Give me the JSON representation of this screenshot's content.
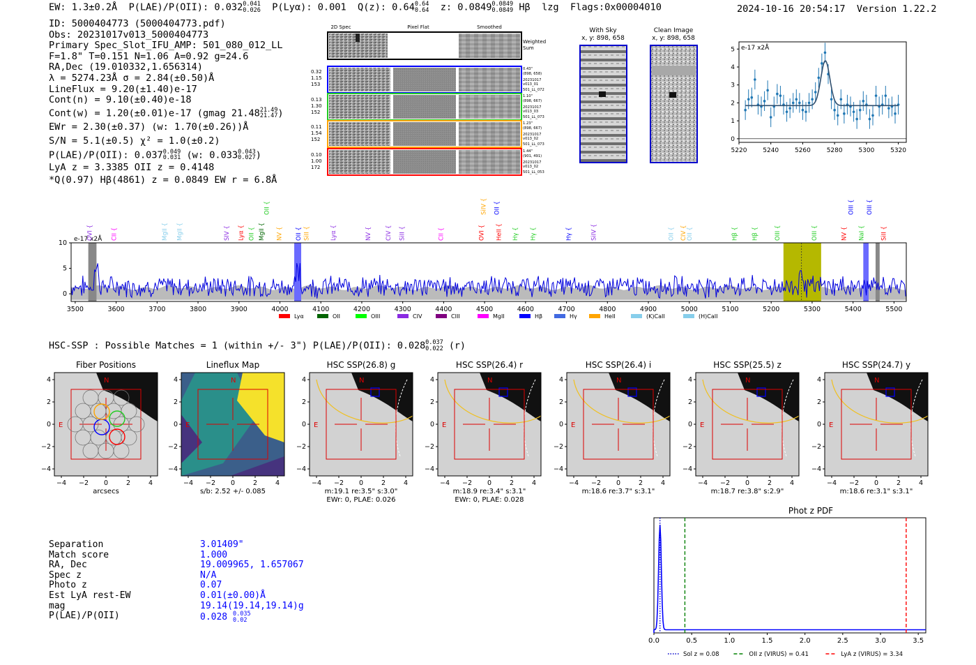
{
  "header": {
    "ew": "EW: 1.3±0.2Å",
    "plae": "P(LAE)/P(OII): 0.032",
    "plae_hi": "0.041",
    "plae_lo": "0.026",
    "plya": "P(Lyα): 0.001",
    "qz": "Q(z): 0.64",
    "qz_hi": "0.64",
    "qz_lo": "0.64",
    "z": "z: 0.0849",
    "z_hi": "0.0849",
    "z_lo": "0.0849",
    "line_tag": "Hβ",
    "flag_tag": "lzg",
    "flags": "Flags:0x00004010",
    "timestamp": "2024-10-16 20:54:17",
    "version": "Version 1.22.2"
  },
  "info": {
    "id": "ID: 5000404773 (5000404773.pdf)",
    "obs": "Obs: 20231017v013_5000404773",
    "primary": "Primary Spec_Slot_IFU_AMP: 501_080_012_LL",
    "fline": "F=1.8\"  T=0.151  N=1.06  A=0.92  g=24.6",
    "radec": "RA,Dec (19.010332,1.656314)",
    "lambda": "λ = 5274.23Å  σ = 2.84(±0.50)Å",
    "lineflux": "LineFlux = 9.20(±1.40)e-17",
    "contn": "Cont(n) = 9.10(±0.40)e-18",
    "contw": "Cont(w) = 1.20(±0.01)e-17 (gmag 21.48",
    "contw_hi": "21.49",
    "contw_lo": "21.47",
    "ewr": "EWr = 2.30(±0.37) (w: 1.70(±0.26))Å",
    "sn": "S/N = 5.1(±0.5)  χ² = 1.0(±0.2)",
    "plae": "P(LAE)/P(OII): 0.037",
    "plae_hi": "0.049",
    "plae_lo": "0.031",
    "plae_w": "(w: 0.033",
    "plae_w_hi": "0.043",
    "plae_w_lo": "0.027",
    "lya": "LyA z = 3.3385  OII z = 0.4148",
    "q": "*Q(0.97) Hβ(4861) z = 0.0849  EW r = 6.8Å"
  },
  "cutouts": {
    "col_labels": [
      "2D Spec",
      "Pixel Flat",
      "Smoothed"
    ],
    "weighted_label": [
      "Weighted",
      "Sum"
    ],
    "rows": [
      {
        "left": [
          "0.32",
          "1.15",
          "153"
        ],
        "right": [
          "0.43\"",
          "(898, 658)",
          "20231017",
          "v013_01",
          "501_LL_072"
        ],
        "color": "#0000ff"
      },
      {
        "left": [
          "0.13",
          "1.30",
          "152"
        ],
        "right": [
          "1.10\"",
          "(898, 667)",
          "20231017",
          "v013_03",
          "501_LL_073"
        ],
        "color": "#22cc22"
      },
      {
        "left": [
          "0.11",
          "1.54",
          "152"
        ],
        "right": [
          "1.23\"",
          "(898, 667)",
          "20231017",
          "v013_02",
          "501_LL_073"
        ],
        "color": "#ffa500"
      },
      {
        "left": [
          "0.10",
          "1.00",
          "172"
        ],
        "right": [
          "1.44\"",
          "(901, 491)",
          "20231017",
          "v013_02",
          "501_LL_053"
        ],
        "color": "#ff0000"
      }
    ],
    "with_sky": [
      "With Sky",
      "x, y: 898, 658"
    ],
    "clean": [
      "Clean Image",
      "x, y: 898, 658"
    ]
  },
  "chart_data": [
    {
      "type": "line",
      "title": "",
      "ylabel_unit": "e-17 x2Å",
      "xlim": [
        5220,
        5325
      ],
      "ylim": [
        -0.2,
        5.4
      ],
      "xticks": [
        5220,
        5240,
        5260,
        5280,
        5300,
        5320
      ],
      "yticks": [
        0,
        1,
        2,
        3,
        4,
        5
      ],
      "series": [
        {
          "name": "data",
          "x": [
            5224,
            5226,
            5228,
            5230,
            5232,
            5234,
            5236,
            5238,
            5240,
            5242,
            5244,
            5246,
            5248,
            5250,
            5252,
            5254,
            5256,
            5258,
            5260,
            5262,
            5264,
            5266,
            5268,
            5270,
            5272,
            5274,
            5276,
            5278,
            5280,
            5282,
            5284,
            5286,
            5288,
            5290,
            5292,
            5294,
            5296,
            5298,
            5300,
            5302,
            5304,
            5306,
            5308,
            5310,
            5312,
            5314,
            5316,
            5318,
            5320
          ],
          "values": [
            1.6,
            2.2,
            2.3,
            3.3,
            1.9,
            1.8,
            2.1,
            2.7,
            1.2,
            1.8,
            2.5,
            2.4,
            1.9,
            1.5,
            1.7,
            2.0,
            2.2,
            2.0,
            1.6,
            1.5,
            2.0,
            2.2,
            2.6,
            3.4,
            4.2,
            4.8,
            3.6,
            2.2,
            1.6,
            1.3,
            2.2,
            1.4,
            1.9,
            1.8,
            1.5,
            1.1,
            1.6,
            2.1,
            1.9,
            1.1,
            1.3,
            2.4,
            1.8,
            1.9,
            2.4,
            1.7,
            1.8,
            1.4,
            1.9
          ],
          "errors": 0.55
        },
        {
          "name": "fit",
          "continuum": 1.85,
          "center": 5274.2,
          "sigma": 2.84,
          "amplitude": 2.5
        }
      ]
    },
    {
      "type": "line",
      "ylabel_unit": "e-17 x2Å",
      "xlim": [
        3490,
        5530
      ],
      "ylim": [
        -1.5,
        10
      ],
      "xticks": [
        3500,
        3600,
        3700,
        3800,
        3900,
        4000,
        4100,
        4200,
        4300,
        4400,
        4500,
        4600,
        4700,
        4800,
        4900,
        5000,
        5100,
        5200,
        5300,
        5400,
        5500
      ],
      "yticks": [
        0,
        5,
        10
      ],
      "highlight_range": [
        5230,
        5322
      ],
      "highlight_center": 5274,
      "blue_band": [
        4035,
        4052
      ],
      "blue_band2": [
        5425,
        5438
      ],
      "grey_band": [
        3532,
        3552
      ],
      "grey_band2": [
        5455,
        5465
      ],
      "series_base": 1.4,
      "line_labels": [
        {
          "label": "OVI",
          "x": 3535,
          "color": "#8a2be2"
        },
        {
          "label": "CII",
          "x": 3595,
          "color": "#ff00ff"
        },
        {
          "label": "MgII",
          "x": 3718,
          "color": "#87ceeb"
        },
        {
          "label": "MgII",
          "x": 3755,
          "color": "#87ceeb"
        },
        {
          "label": "SIV",
          "x": 3870,
          "color": "#8a2be2"
        },
        {
          "label": "Lyα",
          "x": 3905,
          "color": "#ff0000"
        },
        {
          "label": "OII",
          "x": 3930,
          "color": "#22cc22"
        },
        {
          "label": "MgII",
          "x": 3955,
          "color": "#006400"
        },
        {
          "label": "NV",
          "x": 3998,
          "color": "#ffa500"
        },
        {
          "label": "OII",
          "x": 4045,
          "color": "#0000ff"
        },
        {
          "label": "SiII",
          "x": 4065,
          "color": "#ffa500"
        },
        {
          "label": "Lyα",
          "x": 4130,
          "color": "#8a2be2"
        },
        {
          "label": "NV",
          "x": 4215,
          "color": "#8a2be2"
        },
        {
          "label": "CIV",
          "x": 4265,
          "color": "#8a2be2"
        },
        {
          "label": "SiII",
          "x": 4298,
          "color": "#8a2be2"
        },
        {
          "label": "CII",
          "x": 4393,
          "color": "#ff00ff"
        },
        {
          "label": "OVI",
          "x": 4492,
          "color": "#ff0000"
        },
        {
          "label": "HeII",
          "x": 4535,
          "color": "#ff0000"
        },
        {
          "label": "Hγ",
          "x": 4575,
          "color": "#22cc22"
        },
        {
          "label": "Hγ",
          "x": 4618,
          "color": "#22cc22"
        },
        {
          "label": "Hγ",
          "x": 4705,
          "color": "#0000ff"
        },
        {
          "label": "SiIV",
          "x": 4766,
          "color": "#8a2be2"
        },
        {
          "label": "OII",
          "x": 4955,
          "color": "#87ceeb"
        },
        {
          "label": "CIV",
          "x": 4985,
          "color": "#ffa500"
        },
        {
          "label": "OII",
          "x": 5000,
          "color": "#87ceeb"
        },
        {
          "label": "Hβ",
          "x": 5110,
          "color": "#22cc22"
        },
        {
          "label": "Hβ",
          "x": 5160,
          "color": "#22cc22"
        },
        {
          "label": "OIII",
          "x": 5215,
          "color": "#22cc22"
        },
        {
          "label": "OIII",
          "x": 5305,
          "color": "#22cc22"
        },
        {
          "label": "NV",
          "x": 5378,
          "color": "#ff0000"
        },
        {
          "label": "NaI",
          "x": 5420,
          "color": "#22cc22"
        },
        {
          "label": "SiII",
          "x": 5475,
          "color": "#ff0000"
        }
      ],
      "upper_labels": [
        {
          "label": "OII",
          "x": 3968,
          "color": "#22cc22"
        },
        {
          "label": "SiIV",
          "x": 4497,
          "color": "#ffa500"
        },
        {
          "label": "OII",
          "x": 4530,
          "color": "#0000ff"
        },
        {
          "label": "OIII",
          "x": 5395,
          "color": "#0000ff"
        },
        {
          "label": "OIII",
          "x": 5440,
          "color": "#0000ff"
        }
      ],
      "legend": [
        {
          "label": "Lyα",
          "color": "#ff0000"
        },
        {
          "label": "OII",
          "color": "#006400"
        },
        {
          "label": "OIII",
          "color": "#00ff00"
        },
        {
          "label": "CIV",
          "color": "#8a2be2"
        },
        {
          "label": "CIII",
          "color": "#800080"
        },
        {
          "label": "MgII",
          "color": "#ff00ff"
        },
        {
          "label": "Hβ",
          "color": "#0000ff"
        },
        {
          "label": "Hγ",
          "color": "#4169e1"
        },
        {
          "label": "HeII",
          "color": "#ffa500"
        },
        {
          "label": "(K)CaII",
          "color": "#87ceeb"
        },
        {
          "label": "(H)CaII",
          "color": "#87ceeb"
        }
      ]
    },
    {
      "type": "line",
      "title": "Phot z PDF",
      "xlim": [
        0,
        3.6
      ],
      "xticks": [
        0.0,
        0.5,
        1.0,
        1.5,
        2.0,
        2.5,
        3.0,
        3.5
      ],
      "xtick_labels": [
        "0.0",
        "0.5",
        "1.0",
        "1.5",
        "2.0",
        "2.5",
        "3.0",
        "3.5"
      ],
      "series": [
        {
          "name": "pdf",
          "peak_z": 0.08,
          "floor": 0.03
        }
      ],
      "vlines": [
        {
          "label": "Sol z = 0.08",
          "x": 0.08,
          "color": "#0000cc",
          "style": "dotted"
        },
        {
          "label": "OII z (VIRUS) = 0.41",
          "x": 0.41,
          "color": "#008000",
          "style": "dashed"
        },
        {
          "label": "LyA z (VIRUS) = 3.34",
          "x": 3.34,
          "color": "#ff0000",
          "style": "dashed"
        }
      ]
    }
  ],
  "hsc": {
    "title": "HSC-SSP : Possible Matches = 1 (within +/- 3\")  P(LAE)/P(OII): 0.028",
    "title_hi": "0.037",
    "title_lo": "0.022",
    "title_tail": "(r)",
    "ticks": [
      "−4",
      "−2",
      "0",
      "2",
      "4"
    ],
    "panels": [
      {
        "title": "Fiber Positions",
        "caption": [
          "arcsecs"
        ]
      },
      {
        "title": "Lineflux Map",
        "caption": [
          "s/b: 2.52 +/- 0.085"
        ]
      },
      {
        "title": "HSC SSP(26.8) g",
        "caption": [
          "m:19.1  re:3.5\"  s:3.0\"",
          "EWr: 0, PLAE: 0.026"
        ]
      },
      {
        "title": "HSC SSP(26.4) r",
        "caption": [
          "m:18.9  re:3.4\"  s:3.1\"",
          "EWr: 0, PLAE: 0.028"
        ]
      },
      {
        "title": "HSC SSP(26.4) i",
        "caption": [
          "m:18.6  re:3.7\"  s:3.1\""
        ]
      },
      {
        "title": "HSC SSP(25.5) z",
        "caption": [
          "m:18.7  re:3.8\"  s:2.9\""
        ]
      },
      {
        "title": "HSC SSP(24.7) y",
        "caption": [
          "m:18.6  re:3.1\"  s:3.1\""
        ]
      }
    ],
    "compass_n": "N",
    "compass_e": "E"
  },
  "match": {
    "rows": [
      {
        "label": "Separation",
        "value": "3.01409\""
      },
      {
        "label": "Match score",
        "value": "1.000"
      },
      {
        "label": "RA, Dec",
        "value": "19.009965, 1.657067"
      },
      {
        "label": "Spec z",
        "value": "N/A"
      },
      {
        "label": "Photo z",
        "value": "0.07"
      },
      {
        "label": "Est LyA rest-EW",
        "value": "0.01(±0.00)Å"
      },
      {
        "label": "mag",
        "value": "19.14(19.14,19.14)g"
      },
      {
        "label": "P(LAE)/P(OII)",
        "value": "0.028"
      }
    ],
    "plae_hi": "0.035",
    "plae_lo": "0.02"
  }
}
